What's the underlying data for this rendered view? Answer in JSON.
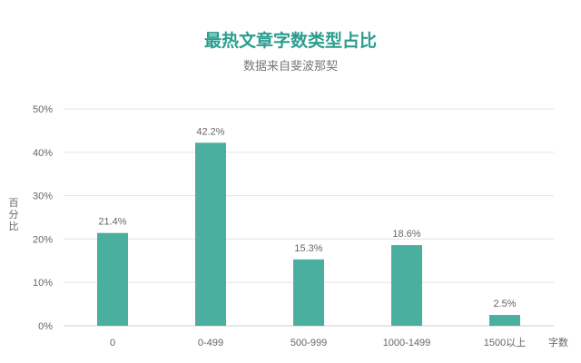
{
  "chart_data": {
    "type": "bar",
    "title": "最热文章字数类型占比",
    "subtitle": "数据来自斐波那契",
    "xlabel": "字数",
    "ylabel": "百分比",
    "categories": [
      "0",
      "0-499",
      "500-999",
      "1000-1499",
      "1500以上"
    ],
    "values": [
      21.4,
      42.2,
      15.3,
      18.6,
      2.5
    ],
    "data_labels": [
      "21.4%",
      "42.2%",
      "15.3%",
      "18.6%",
      "2.5%"
    ],
    "ylim": [
      0,
      50
    ],
    "yticks": [
      0,
      10,
      20,
      30,
      40,
      50
    ],
    "ytick_labels": [
      "0%",
      "10%",
      "20%",
      "30%",
      "40%",
      "50%"
    ],
    "grid": true,
    "legend": "none",
    "bar_color": "#4aaf9f"
  }
}
